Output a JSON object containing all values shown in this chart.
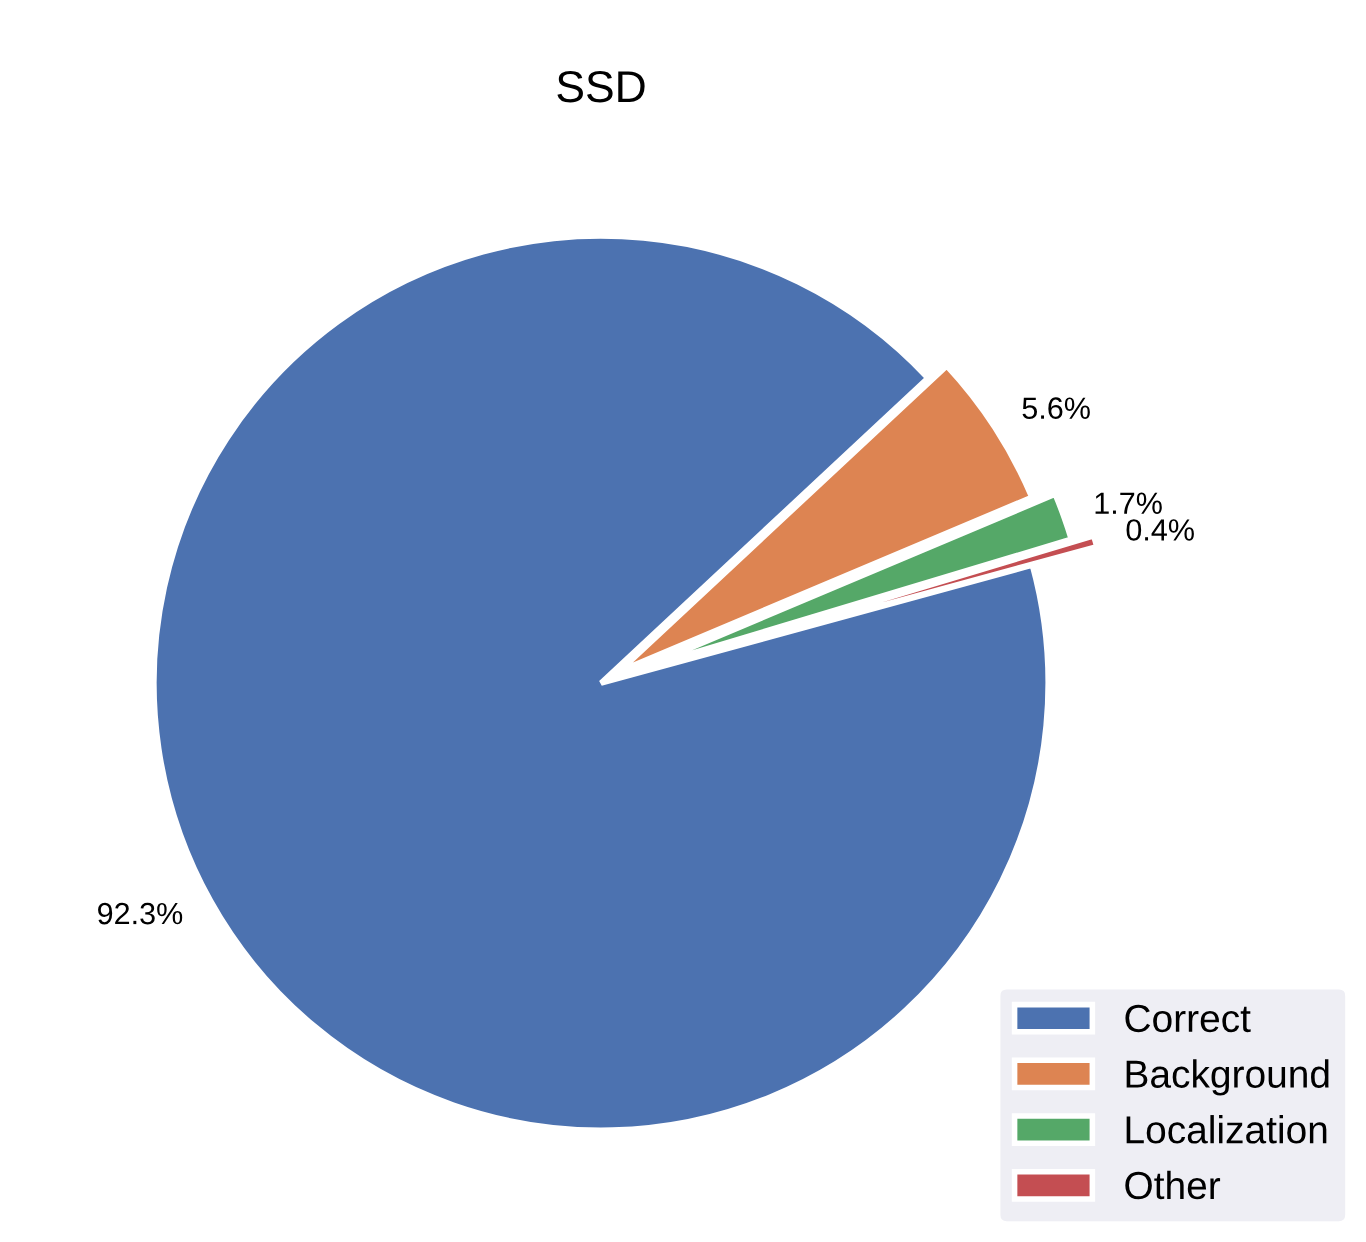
{
  "chart_data": {
    "type": "pie",
    "title": "SSD",
    "categories": [
      "Correct",
      "Background",
      "Localization",
      "Other"
    ],
    "values": [
      92.3,
      5.6,
      1.7,
      0.4
    ],
    "colors": [
      "#4c72b0",
      "#dd8452",
      "#55a868",
      "#c44e52"
    ],
    "value_labels": [
      "92.3%",
      "5.6%",
      "1.7%",
      "0.4%"
    ],
    "legend": "bottom right"
  }
}
